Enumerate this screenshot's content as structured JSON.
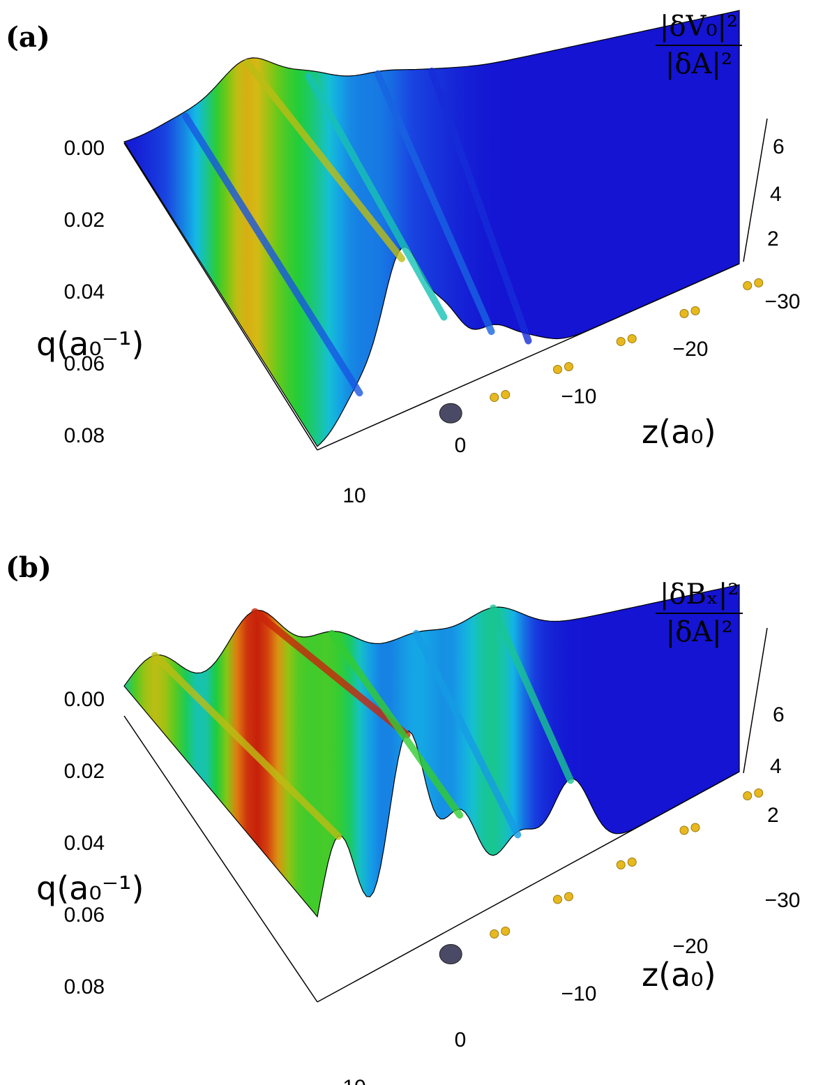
{
  "panels": [
    {
      "label": "(a)",
      "zlabel": {
        "numerator": "|δV₀|²",
        "denominator": "|δA|²"
      },
      "qlabel": "q(a₀⁻¹)",
      "zaxis_title": "z(a₀)"
    },
    {
      "label": "(b)",
      "zlabel": {
        "numerator": "|δBₓ|²",
        "denominator": "|δA|²"
      },
      "qlabel": "q(a₀⁻¹)",
      "zaxis_title": "z(a₀)"
    }
  ],
  "chart_data": [
    {
      "type": "surface",
      "panel": "(a)",
      "x_axis": {
        "label": "z(a₀)",
        "ticks": [
          "10",
          "0",
          "−10",
          "−20",
          "−30"
        ],
        "range": [
          10,
          -30
        ]
      },
      "y_axis": {
        "label": "q(a₀⁻¹)",
        "ticks": [
          "0.00",
          "0.02",
          "0.04",
          "0.06",
          "0.08"
        ],
        "range": [
          0,
          0.08
        ]
      },
      "z_axis": {
        "label": "|δV₀|²/|δA|²",
        "ticks": [
          "2",
          "4",
          "6"
        ],
        "range": [
          0,
          7
        ]
      },
      "ridges": [
        {
          "z": 6,
          "peak": 1.2
        },
        {
          "z": 2,
          "peak": 4.8
        },
        {
          "z": -2,
          "peak": 2.4
        },
        {
          "z": -6.5,
          "peak": 1.3
        },
        {
          "z": -10,
          "peak": 0.5
        }
      ],
      "markers": {
        "central_atom_z": 0,
        "chain_atom_z": [
          -4,
          -10,
          -16,
          -22,
          -28
        ]
      }
    },
    {
      "type": "surface",
      "panel": "(b)",
      "x_axis": {
        "label": "z(a₀)",
        "ticks": [
          "10",
          "0",
          "−10",
          "−20",
          "−30"
        ],
        "range": [
          10,
          -30
        ]
      },
      "y_axis": {
        "label": "q(a₀⁻¹)",
        "ticks": [
          "0.00",
          "0.02",
          "0.04",
          "0.06",
          "0.08"
        ],
        "range": [
          0,
          0.08
        ]
      },
      "z_axis": {
        "label": "|δBₓ|²/|δA|²",
        "ticks": [
          "2",
          "4",
          "6"
        ],
        "range": [
          0,
          7
        ]
      },
      "ridges": [
        {
          "z": 8,
          "peak": 4.8
        },
        {
          "z": 1.5,
          "peak": 6.8
        },
        {
          "z": -3.5,
          "peak": 3.4
        },
        {
          "z": -9,
          "peak": 1.8
        },
        {
          "z": -14,
          "peak": 2.6
        }
      ],
      "markers": {
        "central_atom_z": 0,
        "chain_atom_z": [
          -4,
          -10,
          -16,
          -22,
          -28
        ]
      }
    }
  ]
}
